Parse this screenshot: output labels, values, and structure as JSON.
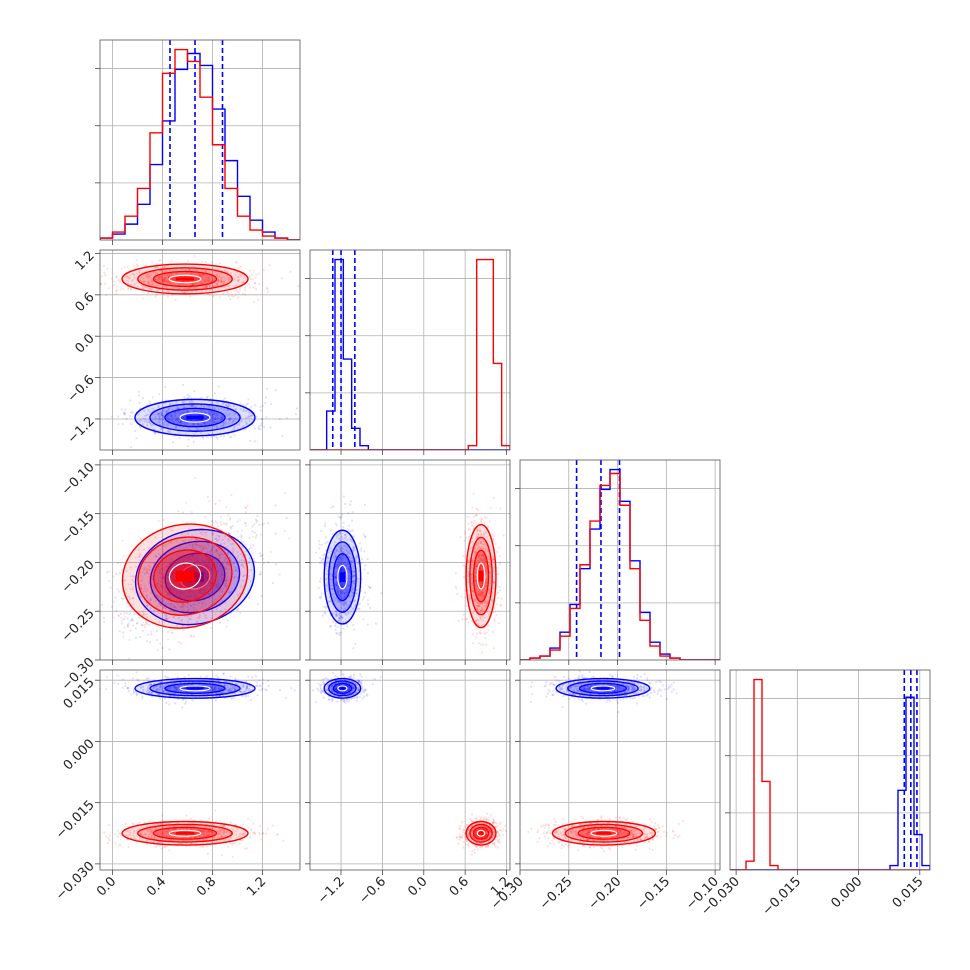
{
  "chart_data": {
    "type": "corner",
    "title": "",
    "grid": true,
    "legend": "none",
    "parameters": [
      {
        "index": 0,
        "range": [
          -0.1,
          1.5
        ],
        "ticks": [
          0.0,
          0.4,
          0.8,
          1.2
        ],
        "tick_labels": [
          "0.0",
          "0.4",
          "0.8",
          "1.2"
        ]
      },
      {
        "index": 1,
        "range": [
          -1.65,
          1.25
        ],
        "ticks": [
          -1.2,
          -0.6,
          0.0,
          0.6,
          1.2
        ],
        "tick_labels": [
          "−1.2",
          "−0.6",
          "0.0",
          "0.6",
          "1.2"
        ]
      },
      {
        "index": 2,
        "range": [
          -0.3,
          -0.095
        ],
        "ticks": [
          -0.3,
          -0.25,
          -0.2,
          -0.15,
          -0.1
        ],
        "tick_labels": [
          "−0.30",
          "−0.25",
          "−0.20",
          "−0.15",
          "−0.10"
        ]
      },
      {
        "index": 3,
        "range": [
          -0.0315,
          0.0175
        ],
        "ticks": [
          -0.03,
          -0.015,
          0.0,
          0.015
        ],
        "tick_labels": [
          "−0.030",
          "−0.015",
          "0.000",
          "0.015"
        ]
      }
    ],
    "series": [
      {
        "color": "#0000ff",
        "alpha_points": 0.12,
        "mean": [
          0.66,
          -1.18,
          -0.215,
          0.013
        ],
        "std": [
          0.2,
          0.11,
          0.02,
          0.001
        ],
        "corr": [
          [
            1,
            0,
            0.5,
            0
          ],
          [
            0,
            1,
            0,
            0
          ],
          [
            0.5,
            0,
            1,
            0
          ],
          [
            0,
            0,
            0,
            1
          ]
        ],
        "quantile_lines": [
          [
            0.46,
            0.66,
            0.88
          ],
          [
            -1.32,
            -1.2,
            -1.0
          ],
          [
            -0.242,
            -0.217,
            -0.198
          ],
          [
            0.0112,
            0.0128,
            0.0143
          ]
        ],
        "histograms": [
          {
            "bins": [
              -0.1,
              1.5
            ],
            "counts": [
              1,
              3,
              8,
              18,
              38,
              60,
              86,
              94,
              88,
              66,
              40,
              22,
              10,
              4,
              1,
              0
            ]
          },
          {
            "bins": [
              -1.65,
              1.25
            ],
            "counts": [
              0,
              0,
              18,
              88,
              42,
              10,
              2,
              0,
              0,
              0,
              0,
              0,
              0,
              0,
              0,
              0,
              0,
              0,
              0,
              0,
              0,
              0,
              0,
              0
            ]
          },
          {
            "bins": [
              -0.3,
              -0.095
            ],
            "counts": [
              0,
              1,
              2,
              6,
              14,
              28,
              46,
              66,
              86,
              96,
              80,
              50,
              24,
              9,
              3,
              1,
              0,
              0,
              0,
              0
            ]
          },
          {
            "bins": [
              -0.0315,
              0.0175
            ],
            "counts": [
              0,
              0,
              0,
              0,
              0,
              0,
              0,
              0,
              0,
              0,
              0,
              0,
              0,
              0,
              0,
              0,
              0,
              0,
              0,
              0,
              2,
              36,
              78,
              16,
              2
            ]
          }
        ]
      },
      {
        "color": "#ff0000",
        "alpha_points": 0.12,
        "mean": [
          0.58,
          0.83,
          -0.214,
          -0.0225
        ],
        "std": [
          0.21,
          0.09,
          0.022,
          0.0012
        ],
        "corr": [
          [
            1,
            0,
            0.45,
            0
          ],
          [
            0,
            1,
            0,
            0
          ],
          [
            0.45,
            0,
            1,
            0
          ],
          [
            0,
            0,
            0,
            1
          ]
        ],
        "quantile_lines": [],
        "histograms": [
          {
            "bins": [
              -0.1,
              1.5
            ],
            "counts": [
              1,
              4,
              12,
              26,
              54,
              84,
              96,
              90,
              72,
              48,
              26,
              12,
              5,
              2,
              1,
              0
            ]
          },
          {
            "bins": [
              -1.65,
              1.25
            ],
            "counts": [
              0,
              0,
              0,
              0,
              0,
              0,
              0,
              0,
              0,
              0,
              0,
              0,
              0,
              0,
              0,
              0,
              0,
              0,
              0,
              2,
              88,
              88,
              40,
              2
            ]
          },
          {
            "bins": [
              -0.3,
              -0.095
            ],
            "counts": [
              0,
              1,
              2,
              5,
              12,
              26,
              48,
              70,
              88,
              94,
              78,
              46,
              20,
              7,
              2,
              1,
              0,
              0,
              0,
              0
            ]
          },
          {
            "bins": [
              -0.0315,
              0.0175
            ],
            "counts": [
              0,
              0,
              4,
              86,
              40,
              2,
              0,
              0,
              0,
              0,
              0,
              0,
              0,
              0,
              0,
              0,
              0,
              0,
              0,
              0,
              0,
              0,
              0,
              0,
              0
            ]
          }
        ]
      }
    ]
  }
}
